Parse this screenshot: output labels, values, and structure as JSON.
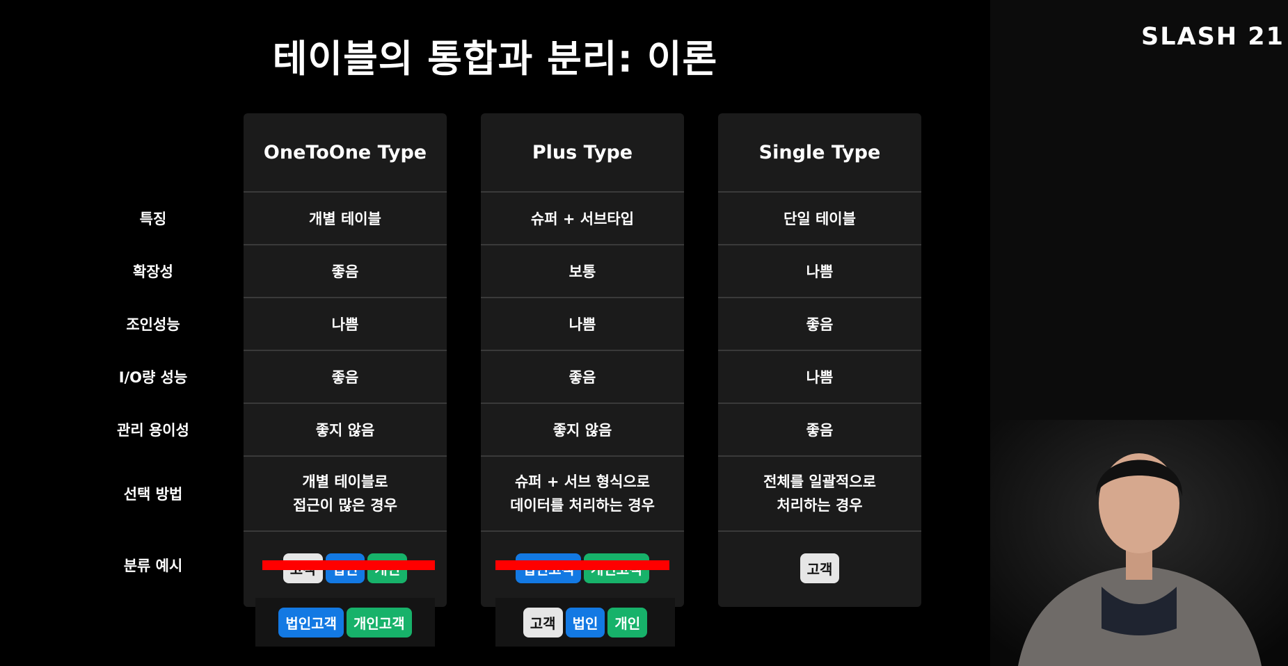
{
  "title": "테이블의 통합과 분리: 이론",
  "logo": "SLASH 21",
  "row_labels": [
    "특징",
    "확장성",
    "조인성능",
    "I/O량 성능",
    "관리 용이성",
    "선택 방법",
    "분류 예시"
  ],
  "columns": [
    {
      "header": "OneToOne Type",
      "cells": [
        "개별 테이블",
        "좋음",
        "나쁨",
        "좋음",
        "좋지 않음"
      ],
      "method": [
        "개별 테이블로",
        "접근이 많은 경우"
      ],
      "tags": [
        "고객",
        "법인",
        "개인"
      ],
      "extra_tags": [
        "법인고객",
        "개인고객"
      ]
    },
    {
      "header": "Plus Type",
      "cells": [
        "슈퍼 + 서브타입",
        "보통",
        "나쁨",
        "좋음",
        "좋지 않음"
      ],
      "method": [
        "슈퍼 + 서브 형식으로",
        "데이터를 처리하는 경우"
      ],
      "tags": [
        "법인고객",
        "개인고객"
      ],
      "extra_tags": [
        "고객",
        "법인",
        "개인"
      ]
    },
    {
      "header": "Single Type",
      "cells": [
        "단일 테이블",
        "나쁨",
        "좋음",
        "나쁨",
        "좋음"
      ],
      "method": [
        "전체를 일괄적으로",
        "처리하는 경우"
      ],
      "tags": [
        "고객"
      ]
    }
  ],
  "colors": {
    "gray_tag": "#e6e6e6",
    "blue_tag": "#1379e3",
    "green_tag": "#17b26a",
    "strike": "#ff0000"
  }
}
